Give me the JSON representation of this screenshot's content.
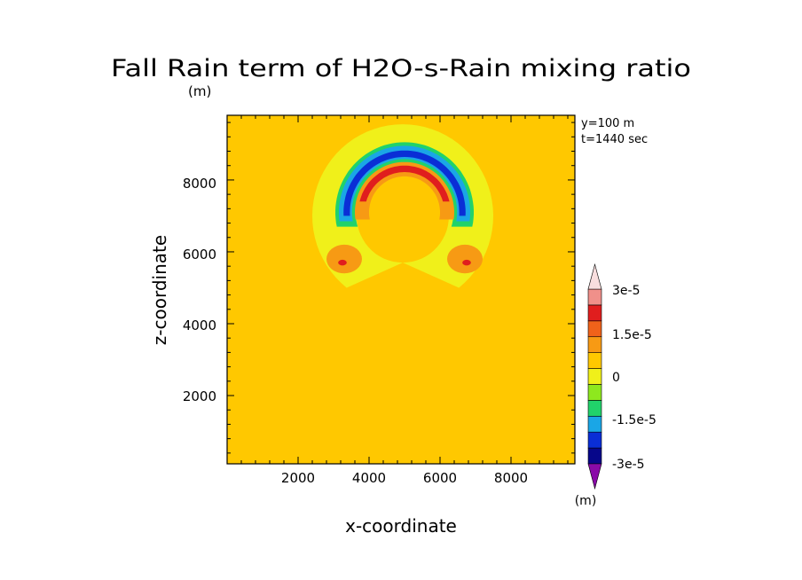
{
  "chart_data": {
    "type": "heatmap",
    "title": "Fall Rain term of H2O-s-Rain mixing ratio",
    "subtitle": "(m)",
    "xlabel": "x-coordinate",
    "ylabel": "z-coordinate",
    "xlim": [
      0,
      9800
    ],
    "ylim": [
      100,
      9800
    ],
    "xticks": [
      "2000",
      "4000",
      "6000",
      "8000"
    ],
    "yticks": [
      "2000",
      "4000",
      "6000",
      "8000"
    ],
    "xtick_values": [
      2000,
      4000,
      6000,
      8000
    ],
    "ytick_values": [
      2000,
      4000,
      6000,
      8000
    ],
    "annotations": [
      "y=100 m",
      "t=1440 sec"
    ],
    "colorbar": {
      "unit": "(m)",
      "labels": [
        "3e-5",
        "1.5e-5",
        "0",
        "-1.5e-5",
        "-3e-5"
      ],
      "levels": [
        -3e-05,
        -2.5e-05,
        -2e-05,
        -1.5e-05,
        -1e-05,
        -5e-06,
        0,
        5e-06,
        1e-05,
        1.5e-05,
        2e-05,
        2.5e-05,
        3e-05
      ],
      "colors": [
        "#8a0aa8",
        "#06068a",
        "#0a2ed6",
        "#1aa6e6",
        "#21d26a",
        "#8ee81e",
        "#f0f01a",
        "#ffc800",
        "#f79a14",
        "#f0621a",
        "#e01e1e",
        "#f0908a",
        "#f8dede"
      ],
      "extend": "both"
    },
    "background_color": "#ffc800",
    "features": [
      {
        "level": "0",
        "color": "#f0f01a",
        "shape": "ring",
        "cx": 4950,
        "cz": 7000,
        "r_outer": 2550,
        "r_inner": 1300,
        "above_z": 5000
      },
      {
        "level": "-1e-5",
        "color": "#21d26a",
        "shape": "arc",
        "cx": 5000,
        "cz": 7100,
        "r_outer": 1950,
        "r_inner": 1380,
        "above_z": 6700
      },
      {
        "level": "-1.5e-5",
        "color": "#1aa6e6",
        "shape": "arc",
        "cx": 5000,
        "cz": 7100,
        "r_outer": 1850,
        "r_inner": 1480,
        "above_z": 6850
      },
      {
        "level": "-2e-5",
        "color": "#0a2ed6",
        "shape": "arc",
        "cx": 5000,
        "cz": 7100,
        "r_outer": 1720,
        "r_inner": 1540,
        "above_z": 7000
      },
      {
        "level": "5e-6",
        "color": "#f79a14",
        "shape": "arc",
        "cx": 5000,
        "cz": 7100,
        "r_outer": 1400,
        "r_inner": 1000,
        "above_z": 6900
      },
      {
        "level": "1.5e-5",
        "color": "#e01e1e",
        "shape": "arc",
        "cx": 5000,
        "cz": 7100,
        "r_outer": 1300,
        "r_inner": 1120,
        "above_z": 7400
      },
      {
        "level": "5e-6",
        "color": "#f79a14",
        "shape": "blob",
        "x": 3300,
        "z": 5800,
        "rx": 500,
        "rz": 400
      },
      {
        "level": "5e-6",
        "color": "#f79a14",
        "shape": "blob",
        "x": 6700,
        "z": 5800,
        "rx": 500,
        "rz": 400
      },
      {
        "level": "1.5e-5",
        "color": "#e01e1e",
        "shape": "blob",
        "x": 3250,
        "z": 5700,
        "rx": 120,
        "rz": 80
      },
      {
        "level": "1.5e-5",
        "color": "#e01e1e",
        "shape": "blob",
        "x": 6750,
        "z": 5700,
        "rx": 120,
        "rz": 80
      }
    ]
  }
}
